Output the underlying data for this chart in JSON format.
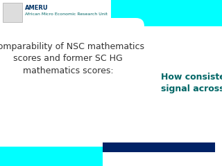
{
  "bg_color": "#00FFFF",
  "white_color": "#FFFFFF",
  "cyan_color": "#00FFFF",
  "header_text1": "AMERU",
  "header_text2": "African Micro Economic Research Unit",
  "header_text_color": "#003366",
  "header_text2_color": "#006666",
  "main_title": "Comparability of NSC mathematics\nscores and former SC HG\nmathematics scores:",
  "main_title_color": "#333333",
  "subtitle": "How consistent is the\nsignal across time?",
  "subtitle_color": "#006666",
  "bar_color": "#002266",
  "figsize": [
    3.2,
    2.4
  ],
  "dpi": 100
}
